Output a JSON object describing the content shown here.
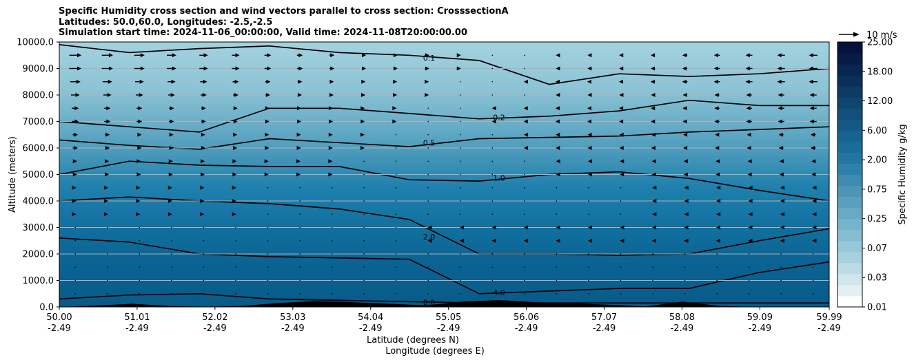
{
  "chart_data": {
    "type": "contour",
    "title_lines": [
      "Specific Humidity cross section and wind vectors parallel to cross section: CrosssectionA",
      "Latitudes: 50.0,60.0, Longitudes: -2.5,-2.5",
      "Simulation start time: 2024-11-06_00:00:00, Valid time: 2024-11-08T20:00:00.00"
    ],
    "ylabel": "Altitude (meters)",
    "xlabel_lat": "Latitude (degrees N)",
    "xlabel_lon": "Longitude (degrees E)",
    "ylim": [
      0,
      10000
    ],
    "yticks": [
      "0.0",
      "1000.0",
      "2000.0",
      "3000.0",
      "4000.0",
      "5000.0",
      "6000.0",
      "7000.0",
      "8000.0",
      "9000.0",
      "10000.0"
    ],
    "xlim": [
      50.0,
      59.99
    ],
    "xticks_lat": [
      "50.00",
      "51.01",
      "52.02",
      "53.03",
      "54.04",
      "55.05",
      "56.06",
      "57.07",
      "58.08",
      "59.09",
      "59.99"
    ],
    "xticks_lon": [
      "-2.49",
      "-2.49",
      "-2.49",
      "-2.49",
      "-2.49",
      "-2.49",
      "-2.49",
      "-2.49",
      "-2.49",
      "-2.49",
      "-2.49"
    ],
    "colorbar": {
      "label": "Specific Humidity g/kg",
      "tick_labels": [
        "0.01",
        "0.03",
        "0.07",
        "0.25",
        "0.75",
        "2.00",
        "6.00",
        "12.00",
        "18.00",
        "25.00"
      ],
      "colors": [
        "#ffffff",
        "#e4eff2",
        "#d0e5ec",
        "#bcdbe6",
        "#a8d1e0",
        "#96c7da",
        "#86bdd3",
        "#76b3cc",
        "#68a9c5",
        "#5a9fbe",
        "#4c95b7",
        "#3d8bb0",
        "#2f81a9",
        "#2277a2",
        "#1a6d99",
        "#17638f",
        "#145984",
        "#124f79",
        "#10456f",
        "#0d3b65",
        "#0a305a",
        "#082650",
        "#061c46",
        "#04123c"
      ],
      "cmap": "Blues-teal"
    },
    "quiver_key": {
      "label": "10 m/s",
      "speed": 10
    },
    "contour_levels": [
      {
        "level": 0.1,
        "label": "0.1",
        "heights": [
          9900,
          9600,
          9750,
          9850,
          9600,
          9500,
          9300,
          8400,
          8800,
          8700,
          8800,
          9000
        ]
      },
      {
        "level": 0.2,
        "label": "0.2",
        "heights": [
          7000,
          6800,
          6600,
          7500,
          7500,
          7300,
          7100,
          7200,
          7400,
          7800,
          7600,
          7600
        ]
      },
      {
        "level": 0.5,
        "label": "0.5",
        "heights": [
          6300,
          6100,
          5950,
          6350,
          6200,
          6050,
          6350,
          6400,
          6450,
          6600,
          6700,
          6800
        ]
      },
      {
        "level": 1.0,
        "label": "1.0",
        "heights": [
          5000,
          5500,
          5350,
          5300,
          5300,
          4800,
          4750,
          5000,
          5100,
          4850,
          4400,
          4000
        ]
      },
      {
        "level": 2.0,
        "label": "2.0",
        "heights": [
          4000,
          4150,
          4000,
          3900,
          3700,
          3300,
          2000,
          2000,
          1950,
          2000,
          2500,
          2950
        ]
      },
      {
        "level": 4.0,
        "label": "4.0",
        "heights": [
          2600,
          2450,
          2000,
          1900,
          1850,
          1800,
          500,
          600,
          700,
          700,
          1300,
          1700
        ]
      },
      {
        "level": 8.0,
        "label": "8.0",
        "heights": [
          300,
          450,
          500,
          300,
          250,
          200,
          150,
          150,
          150,
          150,
          150,
          150
        ]
      }
    ],
    "wind": {
      "levels": [
        9500,
        9000,
        8500,
        8000,
        7500,
        7000,
        6500,
        6000,
        5500,
        5000,
        4500,
        4000,
        3500,
        3000,
        2500,
        2000,
        1500,
        1000,
        500
      ],
      "columns_count": 24,
      "u_profile_west": [
        7,
        7,
        6,
        5,
        4,
        4,
        3,
        3,
        2,
        2,
        1,
        1,
        1,
        0,
        0,
        0,
        0,
        0,
        0
      ],
      "u_profile_east": [
        -5,
        -5,
        -5,
        -4,
        -4,
        -4,
        -3,
        -3,
        -2,
        -2,
        -1,
        -1,
        -1,
        -1,
        -1,
        0,
        0,
        0,
        0
      ]
    },
    "terrain_m": [
      0,
      50,
      120,
      30,
      10,
      40,
      150,
      220,
      180,
      120,
      60,
      200,
      260,
      180,
      140,
      80,
      20,
      200,
      40,
      0,
      0,
      0
    ]
  }
}
